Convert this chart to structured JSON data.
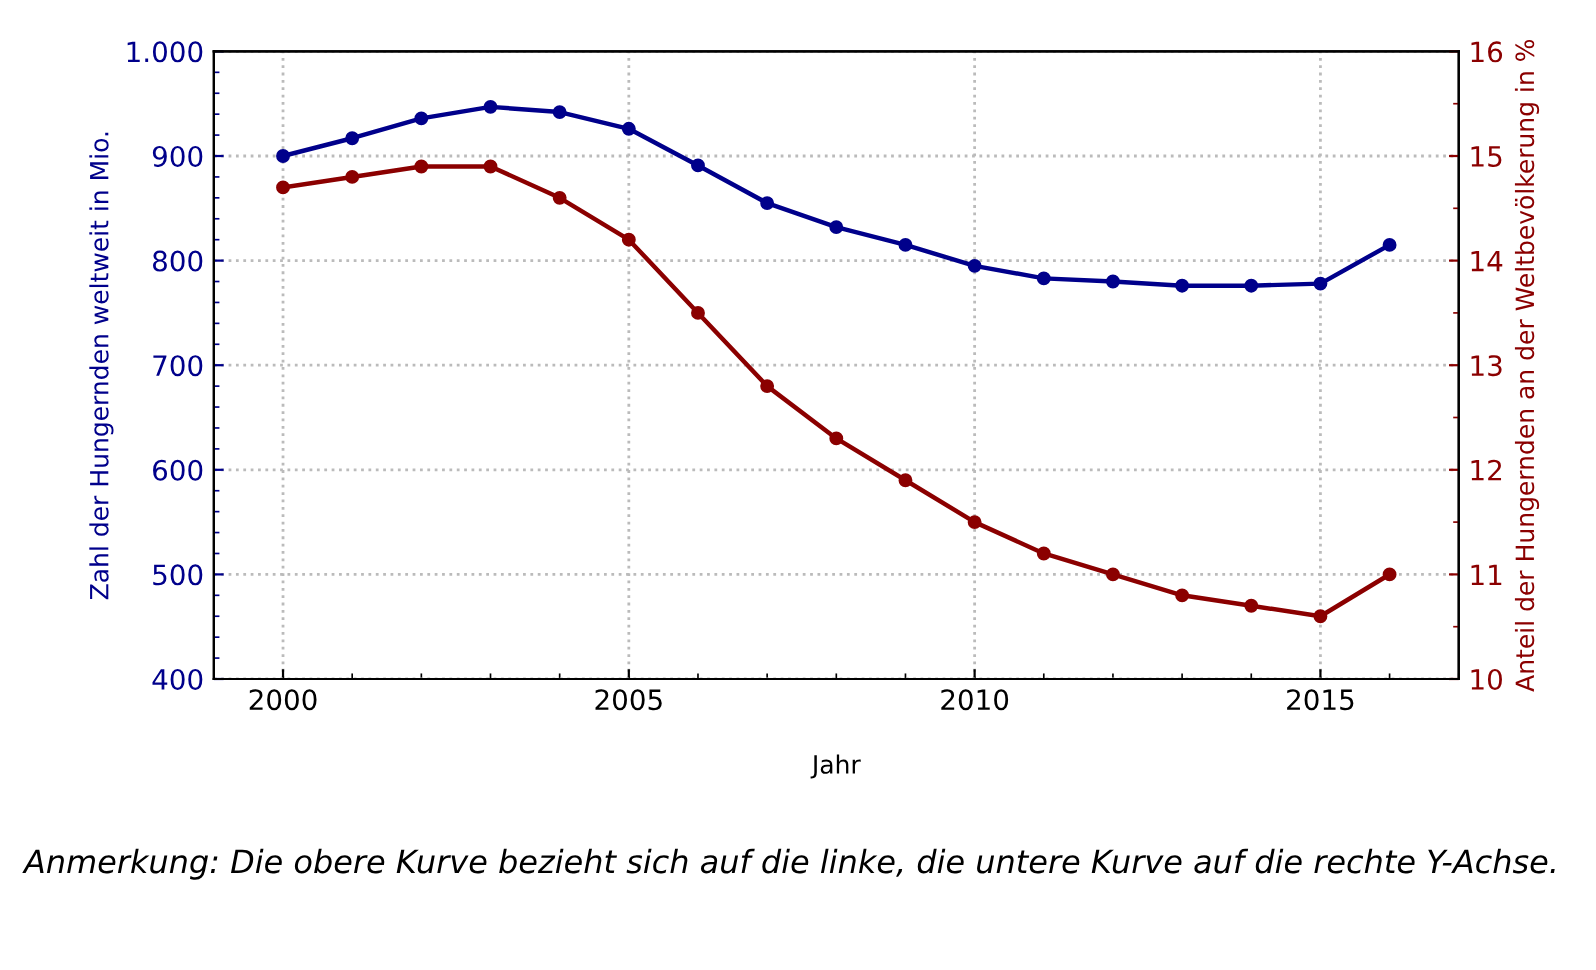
{
  "chart_data": {
    "type": "line",
    "xlabel": "Jahr",
    "ylabel": "Zahl der Hungernden weltweit in Mio.",
    "y2label": "Anteil der Hungernden an der Weltbevölkerung in %",
    "x": [
      2000,
      2001,
      2002,
      2003,
      2004,
      2005,
      2006,
      2007,
      2008,
      2009,
      2010,
      2011,
      2012,
      2013,
      2014,
      2015,
      2016
    ],
    "series": [
      {
        "color": "#00008b",
        "values": [
          900,
          917,
          936,
          947,
          942,
          926,
          891,
          855,
          832,
          815,
          795,
          783,
          780,
          776,
          776,
          778,
          815
        ]
      },
      {
        "color": "#8b0000",
        "axis": "y2",
        "values": [
          14.7,
          14.8,
          14.9,
          14.9,
          14.6,
          14.2,
          13.5,
          12.8,
          12.3,
          11.9,
          11.5,
          11.2,
          11.0,
          10.8,
          10.7,
          10.6,
          11.0
        ]
      }
    ],
    "xlim": [
      1999,
      2017
    ],
    "xticks": [
      2000,
      2005,
      2010,
      2015
    ],
    "ylim": [
      400,
      1000
    ],
    "yticks": [
      400,
      500,
      600,
      700,
      800,
      {
        "value": 900,
        "label": "900"
      },
      {
        "value": 1000,
        "label": "1.000"
      }
    ],
    "y2lim": [
      10,
      16
    ],
    "y2ticks": [
      10,
      11,
      12,
      13,
      14,
      15,
      16
    ],
    "grid": true,
    "marker": "circle",
    "line_style": "solid",
    "legend": false,
    "annotations": [
      "Anmerkung: Die obere Kurve bezieht sich auf die linke, die untere Kurve auf die rechte Y-Achse."
    ]
  }
}
